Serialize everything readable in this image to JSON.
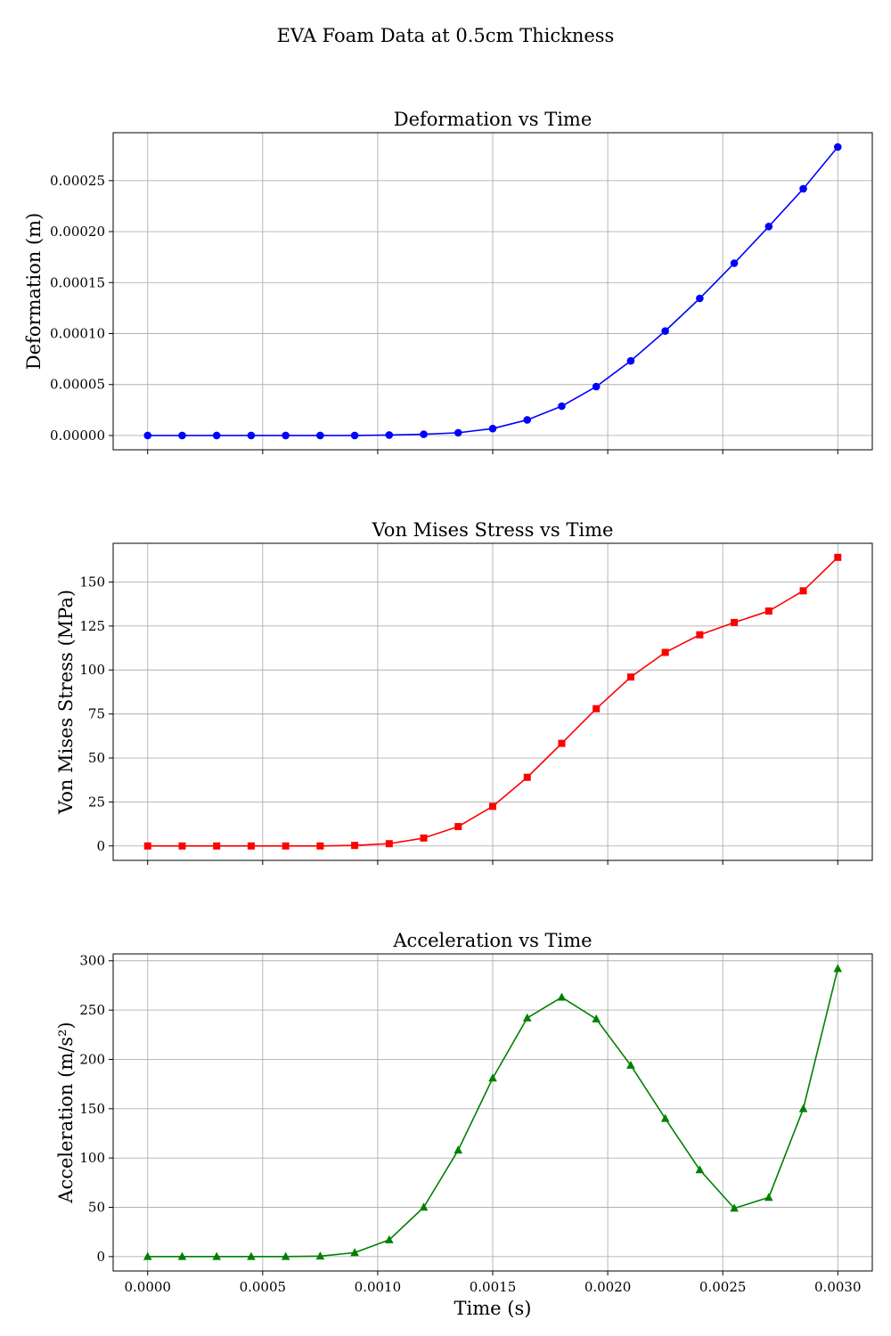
{
  "figure": {
    "suptitle": "EVA Foam Data at 0.5cm Thickness"
  },
  "chart_data": [
    {
      "type": "line",
      "title": "Deformation vs Time",
      "xlabel": "",
      "ylabel": "Deformation (m)",
      "marker": "circle",
      "color": "#0000ff",
      "xlim": [
        -0.00015,
        0.00315
      ],
      "ylim": [
        -1.4e-05,
        0.000297
      ],
      "grid": true,
      "xticks": [
        "0.0000",
        "0.0005",
        "0.0010",
        "0.0015",
        "0.0020",
        "0.0025",
        "0.0030"
      ],
      "xtick_values": [
        0,
        0.0005,
        0.001,
        0.0015,
        0.002,
        0.0025,
        0.003
      ],
      "show_xticklabels": false,
      "yticks": [
        "0.00000",
        "0.00005",
        "0.00010",
        "0.00015",
        "0.00020",
        "0.00025"
      ],
      "ytick_values": [
        0,
        5e-05,
        0.0001,
        0.00015,
        0.0002,
        0.00025
      ],
      "x": [
        0,
        0.00015,
        0.0003,
        0.00045,
        0.0006,
        0.00075,
        0.0009,
        0.00105,
        0.0012,
        0.00135,
        0.0015,
        0.00165,
        0.0018,
        0.00195,
        0.0021,
        0.00225,
        0.0024,
        0.00255,
        0.0027,
        0.00285,
        0.003
      ],
      "y": [
        0,
        0,
        0,
        0,
        0,
        0,
        0,
        5e-07,
        1.2e-06,
        2.7e-06,
        6.8e-06,
        1.53e-05,
        2.88e-05,
        4.8e-05,
        7.32e-05,
        0.0001025,
        0.0001345,
        0.000169,
        0.000205,
        0.000242,
        0.000283
      ]
    },
    {
      "type": "line",
      "title": "Von Mises Stress vs Time",
      "xlabel": "",
      "ylabel": "Von Mises Stress (MPa)",
      "marker": "square",
      "color": "#ff0000",
      "xlim": [
        -0.00015,
        0.00315
      ],
      "ylim": [
        -8.2,
        172
      ],
      "grid": true,
      "xticks": [
        "0.0000",
        "0.0005",
        "0.0010",
        "0.0015",
        "0.0020",
        "0.0025",
        "0.0030"
      ],
      "xtick_values": [
        0,
        0.0005,
        0.001,
        0.0015,
        0.002,
        0.0025,
        0.003
      ],
      "show_xticklabels": false,
      "yticks": [
        "0",
        "25",
        "50",
        "75",
        "100",
        "125",
        "150"
      ],
      "ytick_values": [
        0,
        25,
        50,
        75,
        100,
        125,
        150
      ],
      "x": [
        0,
        0.00015,
        0.0003,
        0.00045,
        0.0006,
        0.00075,
        0.0009,
        0.00105,
        0.0012,
        0.00135,
        0.0015,
        0.00165,
        0.0018,
        0.00195,
        0.0021,
        0.00225,
        0.0024,
        0.00255,
        0.0027,
        0.00285,
        0.003
      ],
      "y": [
        0,
        0,
        0,
        0,
        0,
        0,
        0.3,
        1.3,
        4.5,
        11,
        22.5,
        39,
        58.3,
        78,
        96,
        110,
        120,
        127,
        133.5,
        145,
        164
      ]
    },
    {
      "type": "line",
      "title": "Acceleration vs Time",
      "xlabel": "Time (s)",
      "ylabel": "Acceleration (m/s²)",
      "marker": "triangle",
      "color": "#008000",
      "xlim": [
        -0.00015,
        0.00315
      ],
      "ylim": [
        -14.6,
        307
      ],
      "grid": true,
      "xticks": [
        "0.0000",
        "0.0005",
        "0.0010",
        "0.0015",
        "0.0020",
        "0.0025",
        "0.0030"
      ],
      "xtick_values": [
        0,
        0.0005,
        0.001,
        0.0015,
        0.002,
        0.0025,
        0.003
      ],
      "show_xticklabels": true,
      "yticks": [
        "0",
        "50",
        "100",
        "150",
        "200",
        "250",
        "300"
      ],
      "ytick_values": [
        0,
        50,
        100,
        150,
        200,
        250,
        300
      ],
      "x": [
        0,
        0.00015,
        0.0003,
        0.00045,
        0.0006,
        0.00075,
        0.0009,
        0.00105,
        0.0012,
        0.00135,
        0.0015,
        0.00165,
        0.0018,
        0.00195,
        0.0021,
        0.00225,
        0.0024,
        0.00255,
        0.0027,
        0.00285,
        0.003
      ],
      "y": [
        0,
        0,
        0,
        0,
        0,
        0.5,
        4,
        17,
        50,
        108,
        181,
        242,
        263,
        241,
        194,
        140,
        88,
        49,
        60,
        150,
        292
      ]
    }
  ]
}
